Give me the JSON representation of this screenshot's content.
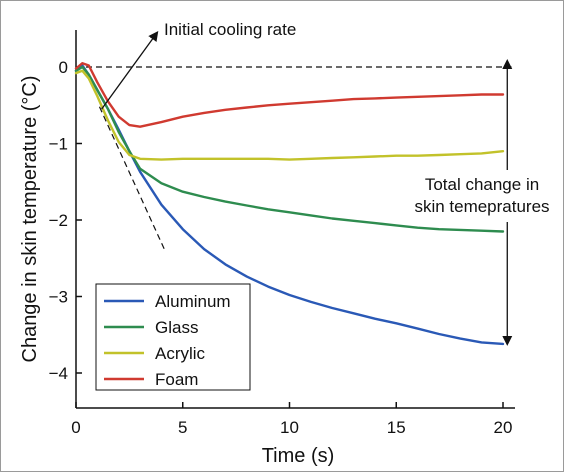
{
  "chart_data": {
    "type": "line",
    "title": "",
    "xlabel": "Time (s)",
    "ylabel": "Change in skin temperature (°C)",
    "xlim": [
      0,
      20
    ],
    "ylim": [
      -4.5,
      0.5
    ],
    "xticks": [
      0,
      5,
      10,
      15,
      20
    ],
    "yticks": [
      0,
      -1,
      -2,
      -3,
      -4
    ],
    "grid": false,
    "legend_position": "bottom-left",
    "series": [
      {
        "name": "Aluminum",
        "color": "#2a59b6",
        "x": [
          0,
          0.3,
          0.6,
          1,
          1.5,
          2,
          2.5,
          3,
          4,
          5,
          6,
          7,
          8,
          9,
          10,
          11,
          12,
          13,
          14,
          15,
          16,
          17,
          18,
          19,
          20
        ],
        "y": [
          -0.05,
          0.02,
          -0.1,
          -0.3,
          -0.55,
          -0.82,
          -1.1,
          -1.37,
          -1.8,
          -2.12,
          -2.38,
          -2.58,
          -2.74,
          -2.87,
          -2.98,
          -3.07,
          -3.15,
          -3.22,
          -3.29,
          -3.35,
          -3.42,
          -3.49,
          -3.55,
          -3.6,
          -3.62
        ]
      },
      {
        "name": "Glass",
        "color": "#2e8c4f",
        "x": [
          0,
          0.3,
          0.6,
          1,
          1.5,
          2,
          2.5,
          3,
          4,
          5,
          6,
          7,
          8,
          9,
          10,
          11,
          12,
          13,
          14,
          15,
          16,
          17,
          18,
          19,
          20
        ],
        "y": [
          -0.05,
          0.0,
          -0.1,
          -0.3,
          -0.55,
          -0.85,
          -1.1,
          -1.33,
          -1.52,
          -1.63,
          -1.7,
          -1.76,
          -1.81,
          -1.86,
          -1.9,
          -1.94,
          -1.98,
          -2.01,
          -2.04,
          -2.07,
          -2.1,
          -2.12,
          -2.13,
          -2.14,
          -2.15
        ]
      },
      {
        "name": "Acrylic",
        "color": "#c2c22a",
        "x": [
          0,
          0.3,
          0.6,
          1,
          1.5,
          2,
          2.5,
          3,
          4,
          5,
          6,
          7,
          8,
          9,
          10,
          11,
          12,
          13,
          14,
          15,
          16,
          17,
          18,
          19,
          20
        ],
        "y": [
          -0.08,
          -0.05,
          -0.15,
          -0.38,
          -0.7,
          -0.98,
          -1.15,
          -1.2,
          -1.21,
          -1.2,
          -1.2,
          -1.2,
          -1.2,
          -1.2,
          -1.21,
          -1.2,
          -1.19,
          -1.18,
          -1.17,
          -1.16,
          -1.16,
          -1.15,
          -1.14,
          -1.13,
          -1.1
        ]
      },
      {
        "name": "Foam",
        "color": "#d03a30",
        "x": [
          0,
          0.3,
          0.6,
          1,
          1.5,
          2,
          2.5,
          3,
          4,
          5,
          6,
          7,
          8,
          9,
          10,
          11,
          12,
          13,
          14,
          15,
          16,
          17,
          18,
          19,
          20
        ],
        "y": [
          -0.02,
          0.05,
          0.02,
          -0.2,
          -0.45,
          -0.65,
          -0.76,
          -0.78,
          -0.72,
          -0.65,
          -0.6,
          -0.56,
          -0.53,
          -0.5,
          -0.48,
          -0.46,
          -0.44,
          -0.42,
          -0.41,
          -0.4,
          -0.39,
          -0.38,
          -0.37,
          -0.36,
          -0.36
        ]
      }
    ],
    "reference_lines": [
      {
        "kind": "zero-line",
        "style": "dashed",
        "x": [
          0,
          20.4
        ],
        "y": [
          0,
          0
        ]
      },
      {
        "kind": "initial-slope",
        "style": "dashed",
        "x": [
          1.1,
          4.2
        ],
        "y": [
          -0.52,
          -2.42
        ]
      }
    ],
    "annotations": [
      {
        "text": "Initial cooling rate",
        "arrow_from": [
          1.2,
          -0.55
        ],
        "arrow_to": [
          3.8,
          0.45
        ]
      },
      {
        "text_lines": [
          "Total change in",
          "skin temepratures"
        ],
        "double_arrow_x": 20.2,
        "from_y": 0,
        "to_y": -3.62
      }
    ]
  }
}
